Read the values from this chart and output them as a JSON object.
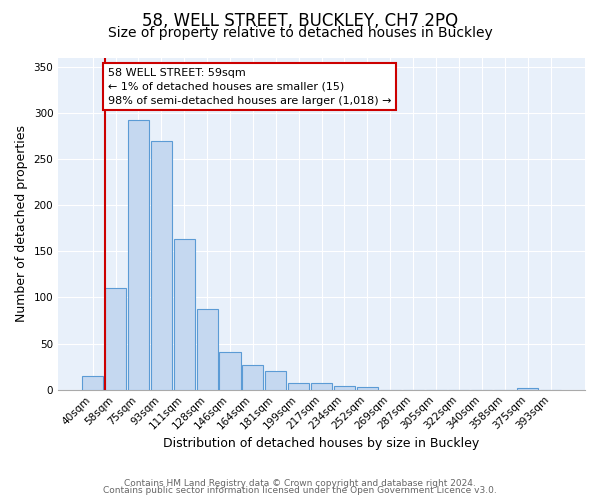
{
  "title": "58, WELL STREET, BUCKLEY, CH7 2PQ",
  "subtitle": "Size of property relative to detached houses in Buckley",
  "xlabel": "Distribution of detached houses by size in Buckley",
  "ylabel": "Number of detached properties",
  "bin_labels": [
    "40sqm",
    "58sqm",
    "75sqm",
    "93sqm",
    "111sqm",
    "128sqm",
    "146sqm",
    "164sqm",
    "181sqm",
    "199sqm",
    "217sqm",
    "234sqm",
    "252sqm",
    "269sqm",
    "287sqm",
    "305sqm",
    "322sqm",
    "340sqm",
    "358sqm",
    "375sqm",
    "393sqm"
  ],
  "bar_heights": [
    15,
    110,
    292,
    270,
    163,
    88,
    41,
    27,
    20,
    7,
    7,
    4,
    3,
    0,
    0,
    0,
    0,
    0,
    0,
    2,
    0
  ],
  "bar_color": "#c5d8f0",
  "bar_edge_color": "#5b9bd5",
  "vline_x_index": 1,
  "vline_color": "#cc0000",
  "annotation_box_text": "58 WELL STREET: 59sqm\n← 1% of detached houses are smaller (15)\n98% of semi-detached houses are larger (1,018) →",
  "ylim": [
    0,
    360
  ],
  "yticks": [
    0,
    50,
    100,
    150,
    200,
    250,
    300,
    350
  ],
  "footer_line1": "Contains HM Land Registry data © Crown copyright and database right 2024.",
  "footer_line2": "Contains public sector information licensed under the Open Government Licence v3.0.",
  "fig_bg_color": "#ffffff",
  "plot_bg_color": "#e8f0fa",
  "title_fontsize": 12,
  "subtitle_fontsize": 10,
  "tick_fontsize": 7.5,
  "ylabel_fontsize": 9,
  "xlabel_fontsize": 9,
  "footer_fontsize": 6.5
}
